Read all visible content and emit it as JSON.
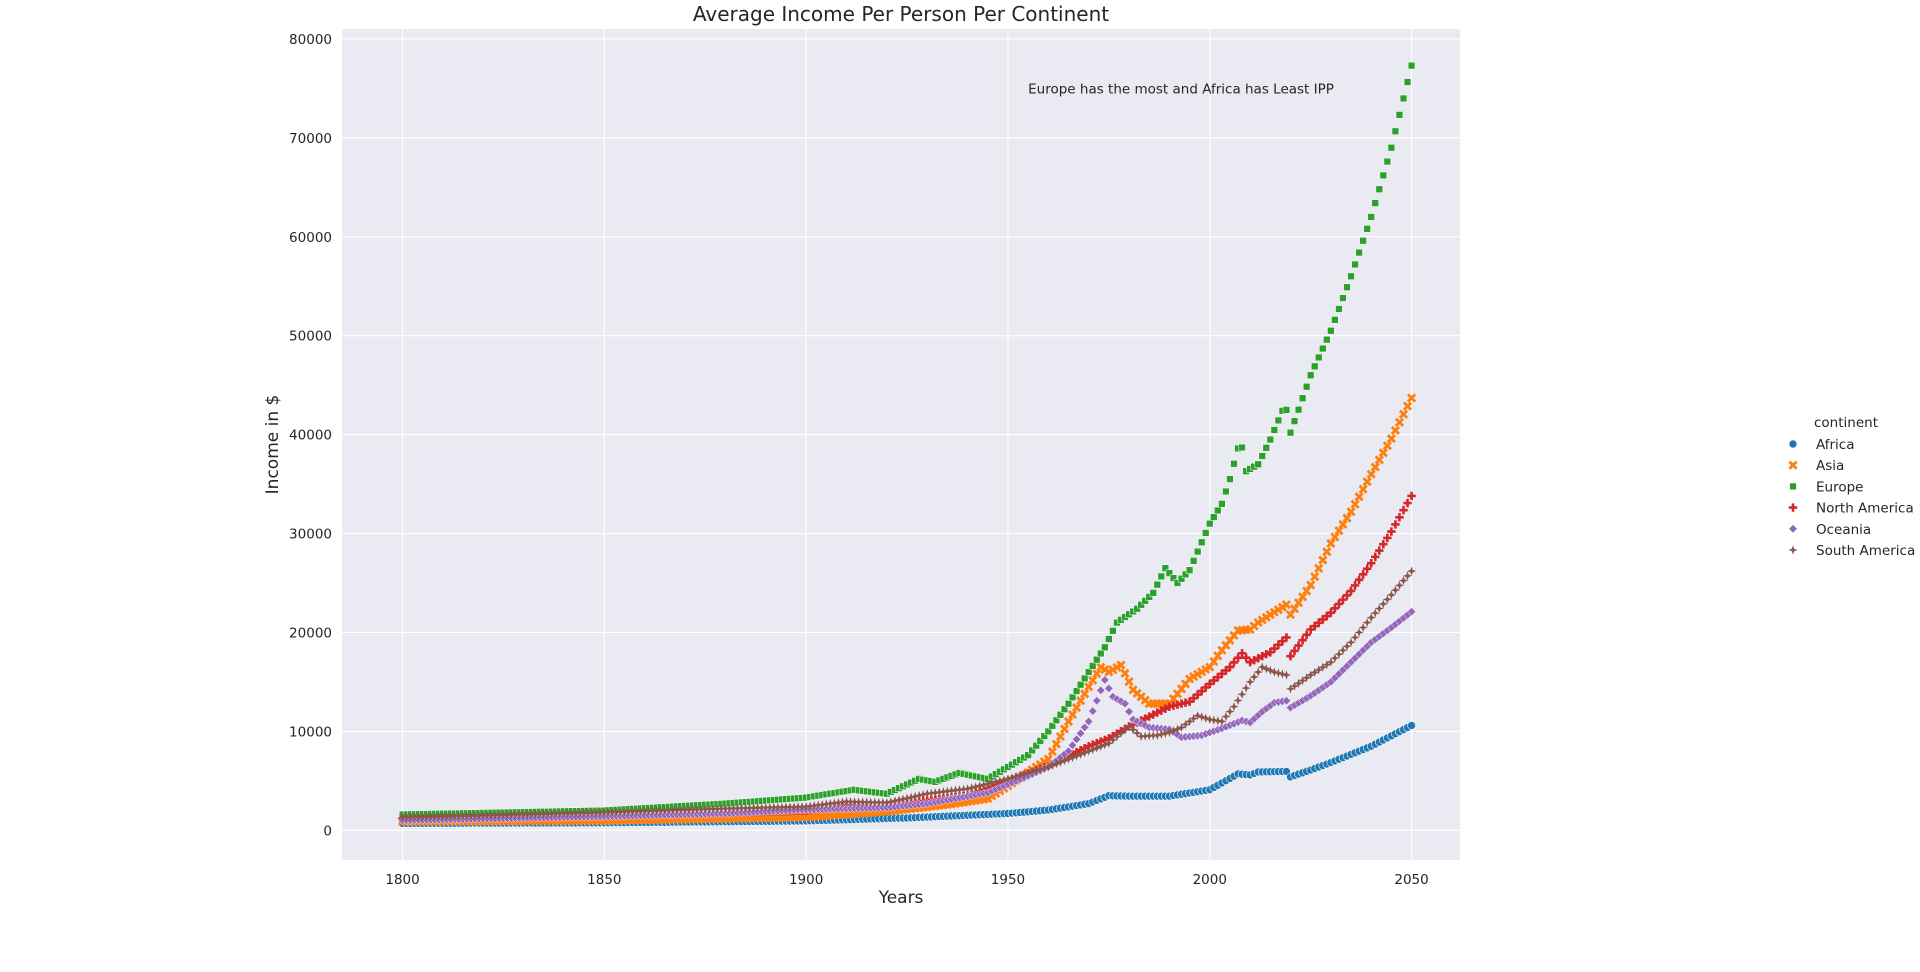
{
  "chart_data": {
    "type": "scatter",
    "title": "Average Income Per Person Per Continent",
    "xlabel": "Years",
    "ylabel": "Income in $",
    "xlim": [
      1785,
      2062
    ],
    "ylim": [
      -3000,
      81000
    ],
    "xticks": [
      1800,
      1850,
      1900,
      1950,
      2000,
      2050
    ],
    "yticks": [
      0,
      10000,
      20000,
      30000,
      40000,
      50000,
      60000,
      70000,
      80000
    ],
    "grid": true,
    "background": "#eaeaf2",
    "annotation": {
      "text": "Europe has the most and Africa has Least IPP",
      "x": 1955,
      "y": 75000
    },
    "legend": {
      "title": "continent",
      "placement": "right"
    },
    "series": [
      {
        "name": "Africa",
        "marker": "circle",
        "color": "#1f77b4",
        "keypoints": [
          [
            1800,
            700
          ],
          [
            1850,
            760
          ],
          [
            1900,
            950
          ],
          [
            1925,
            1250
          ],
          [
            1950,
            1700
          ],
          [
            1960,
            2050
          ],
          [
            1970,
            2700
          ],
          [
            1975,
            3500
          ],
          [
            1980,
            3450
          ],
          [
            1990,
            3450
          ],
          [
            2000,
            4100
          ],
          [
            2007,
            5700
          ],
          [
            2010,
            5600
          ],
          [
            2012,
            5900
          ],
          [
            2019,
            5950
          ],
          [
            2020,
            5400
          ],
          [
            2025,
            6100
          ],
          [
            2030,
            6850
          ],
          [
            2040,
            8500
          ],
          [
            2050,
            10600
          ]
        ]
      },
      {
        "name": "Asia",
        "marker": "x",
        "color": "#ff7f0e",
        "keypoints": [
          [
            1800,
            900
          ],
          [
            1850,
            1000
          ],
          [
            1900,
            1350
          ],
          [
            1920,
            1900
          ],
          [
            1935,
            2600
          ],
          [
            1945,
            3200
          ],
          [
            1950,
            4500
          ],
          [
            1960,
            7200
          ],
          [
            1965,
            11000
          ],
          [
            1970,
            14500
          ],
          [
            1973,
            16500
          ],
          [
            1975,
            16000
          ],
          [
            1978,
            16700
          ],
          [
            1981,
            14200
          ],
          [
            1985,
            12800
          ],
          [
            1990,
            12800
          ],
          [
            1995,
            15300
          ],
          [
            2000,
            16500
          ],
          [
            2003,
            18200
          ],
          [
            2007,
            20200
          ],
          [
            2010,
            20300
          ],
          [
            2012,
            21000
          ],
          [
            2015,
            21800
          ],
          [
            2019,
            22800
          ],
          [
            2020,
            21800
          ],
          [
            2025,
            24800
          ],
          [
            2030,
            29000
          ],
          [
            2035,
            32200
          ],
          [
            2040,
            36000
          ],
          [
            2045,
            39600
          ],
          [
            2050,
            43700
          ]
        ]
      },
      {
        "name": "Europe",
        "marker": "square",
        "color": "#2ca02c",
        "keypoints": [
          [
            1800,
            1600
          ],
          [
            1850,
            2000
          ],
          [
            1880,
            2700
          ],
          [
            1900,
            3300
          ],
          [
            1912,
            4100
          ],
          [
            1920,
            3700
          ],
          [
            1928,
            5200
          ],
          [
            1932,
            4900
          ],
          [
            1938,
            5800
          ],
          [
            1945,
            5200
          ],
          [
            1950,
            6400
          ],
          [
            1955,
            7600
          ],
          [
            1960,
            10000
          ],
          [
            1965,
            12800
          ],
          [
            1970,
            16000
          ],
          [
            1974,
            18500
          ],
          [
            1977,
            21000
          ],
          [
            1982,
            22400
          ],
          [
            1986,
            24000
          ],
          [
            1989,
            26500
          ],
          [
            1992,
            25000
          ],
          [
            1995,
            26300
          ],
          [
            2000,
            31000
          ],
          [
            2003,
            33000
          ],
          [
            2005,
            35500
          ],
          [
            2007,
            38600
          ],
          [
            2008,
            38700
          ],
          [
            2009,
            36300
          ],
          [
            2012,
            37000
          ],
          [
            2015,
            39500
          ],
          [
            2018,
            42400
          ],
          [
            2019,
            42500
          ],
          [
            2020,
            40200
          ],
          [
            2025,
            46000
          ],
          [
            2030,
            50500
          ],
          [
            2035,
            56000
          ],
          [
            2040,
            62000
          ],
          [
            2045,
            69000
          ],
          [
            2050,
            77300
          ]
        ]
      },
      {
        "name": "North America",
        "marker": "plus",
        "color": "#d62728",
        "keypoints": [
          [
            1800,
            1150
          ],
          [
            1850,
            1500
          ],
          [
            1880,
            1750
          ],
          [
            1900,
            2000
          ],
          [
            1910,
            2500
          ],
          [
            1920,
            2400
          ],
          [
            1930,
            3000
          ],
          [
            1940,
            3500
          ],
          [
            1950,
            5000
          ],
          [
            1960,
            6500
          ],
          [
            1970,
            8500
          ],
          [
            1975,
            9300
          ],
          [
            1980,
            10500
          ],
          [
            1985,
            11500
          ],
          [
            1990,
            12500
          ],
          [
            1995,
            13000
          ],
          [
            2000,
            14800
          ],
          [
            2005,
            16500
          ],
          [
            2008,
            17900
          ],
          [
            2010,
            17000
          ],
          [
            2015,
            18000
          ],
          [
            2019,
            19500
          ],
          [
            2020,
            17600
          ],
          [
            2025,
            20300
          ],
          [
            2030,
            22000
          ],
          [
            2035,
            24200
          ],
          [
            2040,
            27000
          ],
          [
            2045,
            30200
          ],
          [
            2050,
            33800
          ]
        ]
      },
      {
        "name": "Oceania",
        "marker": "diamond",
        "color": "#9467bd",
        "keypoints": [
          [
            1800,
            1000
          ],
          [
            1850,
            1400
          ],
          [
            1880,
            1700
          ],
          [
            1900,
            2100
          ],
          [
            1920,
            2300
          ],
          [
            1930,
            2700
          ],
          [
            1945,
            3800
          ],
          [
            1955,
            5500
          ],
          [
            1960,
            6400
          ],
          [
            1965,
            8000
          ],
          [
            1970,
            11000
          ],
          [
            1974,
            15200
          ],
          [
            1976,
            13500
          ],
          [
            1979,
            12800
          ],
          [
            1981,
            11200
          ],
          [
            1985,
            10400
          ],
          [
            1990,
            10200
          ],
          [
            1993,
            9400
          ],
          [
            1998,
            9600
          ],
          [
            2003,
            10300
          ],
          [
            2008,
            11100
          ],
          [
            2010,
            10900
          ],
          [
            2013,
            12000
          ],
          [
            2016,
            12900
          ],
          [
            2019,
            13100
          ],
          [
            2020,
            12400
          ],
          [
            2025,
            13600
          ],
          [
            2030,
            15000
          ],
          [
            2035,
            17000
          ],
          [
            2040,
            19000
          ],
          [
            2045,
            20500
          ],
          [
            2050,
            22100
          ]
        ]
      },
      {
        "name": "South America",
        "marker": "star",
        "color": "#8c564b",
        "keypoints": [
          [
            1800,
            1300
          ],
          [
            1850,
            1800
          ],
          [
            1880,
            2200
          ],
          [
            1900,
            2400
          ],
          [
            1910,
            2900
          ],
          [
            1920,
            2800
          ],
          [
            1930,
            3700
          ],
          [
            1940,
            4200
          ],
          [
            1950,
            5200
          ],
          [
            1960,
            6400
          ],
          [
            1970,
            8000
          ],
          [
            1975,
            8800
          ],
          [
            1980,
            10500
          ],
          [
            1983,
            9500
          ],
          [
            1987,
            9600
          ],
          [
            1990,
            9900
          ],
          [
            1993,
            10400
          ],
          [
            1997,
            11600
          ],
          [
            2000,
            11200
          ],
          [
            2003,
            11000
          ],
          [
            2006,
            12500
          ],
          [
            2010,
            15000
          ],
          [
            2013,
            16500
          ],
          [
            2016,
            16000
          ],
          [
            2019,
            15700
          ],
          [
            2020,
            14300
          ],
          [
            2025,
            15700
          ],
          [
            2030,
            17000
          ],
          [
            2035,
            19000
          ],
          [
            2040,
            21500
          ],
          [
            2045,
            23800
          ],
          [
            2050,
            26200
          ]
        ]
      }
    ]
  }
}
